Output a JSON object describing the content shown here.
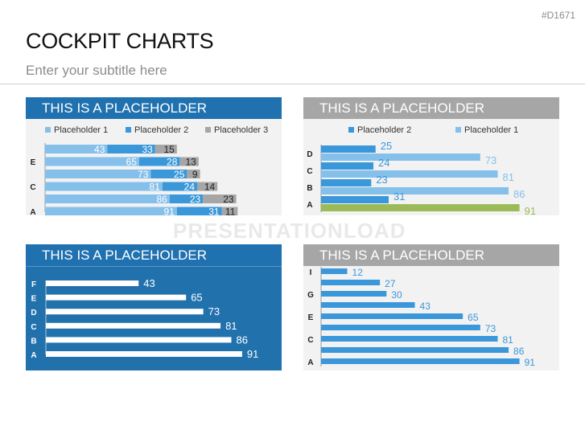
{
  "slide_code": "#D1671",
  "title": "COCKPIT CHARTS",
  "subtitle": "Enter your subtitle here",
  "watermark": "PRESENTATIONLOAD",
  "colors": {
    "dark_blue": "#1f71b0",
    "mid_blue": "#3a97da",
    "light_blue": "#85c0eb",
    "gray": "#a6a6a6",
    "green": "#9bbb59"
  },
  "chart_data": [
    {
      "type": "bar",
      "orientation": "horizontal",
      "stacked": true,
      "title": "THIS IS A PLACEHOLDER",
      "categories": [
        "",
        "E",
        "",
        "C",
        "",
        "A"
      ],
      "series": [
        {
          "name": "Placeholder 1",
          "color": "#85c0eb",
          "values": [
            43,
            65,
            73,
            81,
            86,
            91
          ]
        },
        {
          "name": "Placeholder 2",
          "color": "#3a97da",
          "values": [
            33,
            28,
            25,
            24,
            23,
            31
          ]
        },
        {
          "name": "Placeholder 3",
          "color": "#a6a6a6",
          "values": [
            15,
            13,
            9,
            14,
            23,
            11
          ]
        }
      ],
      "legend": "top"
    },
    {
      "type": "bar",
      "orientation": "horizontal",
      "title": "THIS IS A PLACEHOLDER",
      "categories": [
        "D",
        "C",
        "B",
        "A"
      ],
      "series": [
        {
          "name": "Placeholder 2",
          "color": "#3a97da",
          "values": [
            25,
            24,
            23,
            31
          ]
        },
        {
          "name": "Placeholder 1",
          "color": "#85c0eb",
          "values": [
            73,
            81,
            86,
            91
          ],
          "highlight": {
            "index": 3,
            "color": "#9bbb59"
          }
        }
      ],
      "legend": "top"
    },
    {
      "type": "bar",
      "orientation": "horizontal",
      "title": "THIS IS A PLACEHOLDER",
      "categories": [
        "F",
        "E",
        "D",
        "C",
        "B",
        "A"
      ],
      "values": [
        43,
        65,
        73,
        81,
        86,
        91
      ],
      "color": "#ffffff"
    },
    {
      "type": "bar",
      "orientation": "horizontal",
      "title": "THIS IS A PLACEHOLDER",
      "categories": [
        "I",
        "",
        "G",
        "",
        "E",
        "",
        "C",
        "",
        "A"
      ],
      "values": [
        12,
        27,
        30,
        43,
        65,
        73,
        81,
        86,
        91
      ],
      "color": "#3a97da"
    }
  ]
}
